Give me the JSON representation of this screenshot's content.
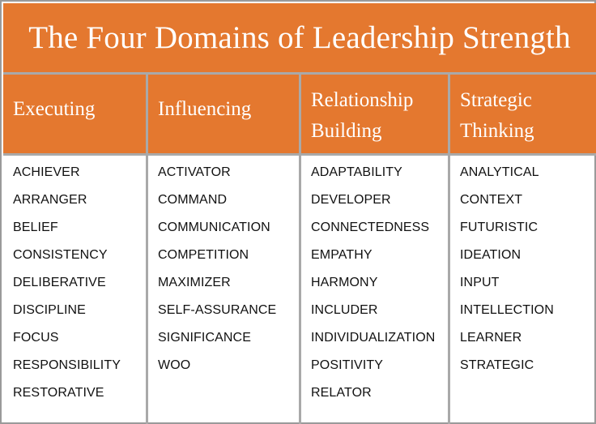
{
  "title": "The Four Domains of Leadership Strength",
  "colors": {
    "header_orange": "#e4782f",
    "header_text": "#ffffff",
    "divider_gray": "#a9a9a9",
    "body_text": "#111111"
  },
  "columns": [
    {
      "heading_lines": [
        "Executing"
      ],
      "items": [
        "ACHIEVER",
        "ARRANGER",
        "BELIEF",
        "CONSISTENCY",
        "DELIBERATIVE",
        "DISCIPLINE",
        "FOCUS",
        "RESPONSIBILITY",
        "RESTORATIVE"
      ]
    },
    {
      "heading_lines": [
        "Influencing"
      ],
      "items": [
        "ACTIVATOR",
        "COMMAND",
        "COMMUNICATION",
        "COMPETITION",
        "MAXIMIZER",
        "SELF-ASSURANCE",
        "SIGNIFICANCE",
        "WOO"
      ]
    },
    {
      "heading_lines": [
        "Relationship",
        "Building"
      ],
      "items": [
        "ADAPTABILITY",
        "DEVELOPER",
        "CONNECTEDNESS",
        "EMPATHY",
        "HARMONY",
        "INCLUDER",
        "INDIVIDUALIZATION",
        "POSITIVITY",
        "RELATOR"
      ]
    },
    {
      "heading_lines": [
        "Strategic",
        "Thinking"
      ],
      "items": [
        "ANALYTICAL",
        "CONTEXT",
        "FUTURISTIC",
        "IDEATION",
        "INPUT",
        "INTELLECTION",
        "LEARNER",
        "STRATEGIC"
      ]
    }
  ]
}
